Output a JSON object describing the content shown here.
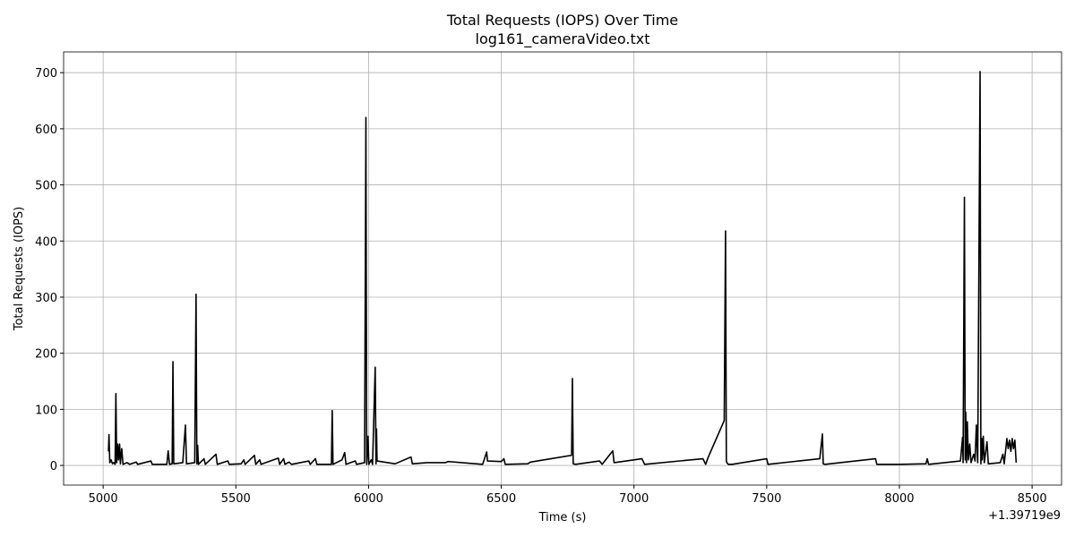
{
  "chart_data": {
    "type": "line",
    "title": "Total Requests (IOPS) Over Time",
    "subtitle": "log161_cameraVideo.txt",
    "x_label": "Time (s)",
    "y_label": "Total Requests (IOPS)",
    "x_offset_label": "+1.39719e9",
    "grid": true,
    "xlim": [
      4851,
      8611
    ],
    "ylim": [
      -35,
      737
    ],
    "xticks": [
      5000,
      5500,
      6000,
      6500,
      7000,
      7500,
      8000,
      8500
    ],
    "yticks": [
      0,
      100,
      200,
      300,
      400,
      500,
      600,
      700
    ],
    "x": [
      5020,
      5022,
      5025,
      5030,
      5035,
      5040,
      5045,
      5048,
      5051,
      5055,
      5058,
      5062,
      5065,
      5070,
      5075,
      5090,
      5100,
      5125,
      5130,
      5180,
      5185,
      5240,
      5245,
      5250,
      5260,
      5263,
      5266,
      5300,
      5310,
      5314,
      5345,
      5350,
      5353,
      5356,
      5359,
      5380,
      5385,
      5425,
      5430,
      5470,
      5475,
      5520,
      5530,
      5535,
      5570,
      5575,
      5590,
      5595,
      5660,
      5665,
      5680,
      5685,
      5700,
      5710,
      5775,
      5780,
      5800,
      5805,
      5860,
      5863,
      5866,
      5900,
      5910,
      5915,
      5950,
      5955,
      5985,
      5990,
      5993,
      5998,
      6001,
      6010,
      6015,
      6025,
      6028,
      6030,
      6032,
      6100,
      6160,
      6165,
      6220,
      6290,
      6300,
      6430,
      6445,
      6448,
      6500,
      6510,
      6515,
      6600,
      6610,
      6765,
      6768,
      6771,
      6780,
      6870,
      6880,
      6920,
      6925,
      7030,
      7040,
      7260,
      7270,
      7280,
      7340,
      7345,
      7348,
      7350,
      7355,
      7370,
      7500,
      7505,
      7700,
      7710,
      7713,
      7720,
      7910,
      7915,
      7990,
      8000,
      8100,
      8105,
      8110,
      8230,
      8238,
      8240,
      8245,
      8248,
      8250,
      8253,
      8256,
      8260,
      8265,
      8270,
      8280,
      8285,
      8290,
      8295,
      8304,
      8307,
      8310,
      8312,
      8316,
      8320,
      8330,
      8335,
      8380,
      8390,
      8395,
      8405,
      8410,
      8415,
      8420,
      8425,
      8430,
      8435,
      8440
    ],
    "series": [
      {
        "name": "Total Requests (IOPS)",
        "color": "#000000",
        "values": [
          25,
          55,
          5,
          10,
          3,
          5,
          2,
          128,
          5,
          38,
          10,
          38,
          3,
          30,
          2,
          5,
          2,
          6,
          2,
          8,
          2,
          2,
          26,
          2,
          3,
          185,
          3,
          5,
          72,
          3,
          5,
          305,
          3,
          36,
          2,
          12,
          2,
          20,
          2,
          8,
          2,
          3,
          10,
          2,
          18,
          2,
          10,
          2,
          13,
          2,
          12,
          2,
          6,
          2,
          8,
          2,
          12,
          2,
          2,
          98,
          2,
          10,
          23,
          2,
          8,
          2,
          5,
          620,
          2,
          52,
          2,
          10,
          2,
          175,
          3,
          65,
          8,
          3,
          15,
          3,
          5,
          5,
          7,
          2,
          24,
          8,
          7,
          12,
          2,
          3,
          6,
          18,
          155,
          3,
          2,
          8,
          2,
          26,
          5,
          12,
          2,
          12,
          2,
          15,
          80,
          418,
          8,
          5,
          2,
          2,
          12,
          2,
          12,
          56,
          3,
          2,
          12,
          2,
          2,
          2,
          3,
          12,
          2,
          8,
          50,
          5,
          478,
          10,
          95,
          5,
          78,
          10,
          38,
          5,
          20,
          8,
          72,
          5,
          702,
          3,
          48,
          10,
          52,
          5,
          42,
          3,
          5,
          20,
          3,
          48,
          30,
          45,
          25,
          48,
          30,
          45,
          5
        ]
      }
    ]
  }
}
